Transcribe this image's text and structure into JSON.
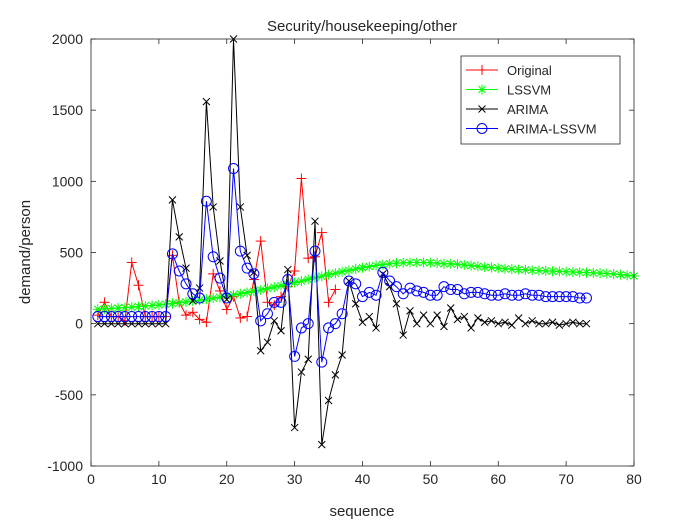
{
  "chart_data": {
    "type": "line",
    "title": "Security/housekeeping/other",
    "xlabel": "sequence",
    "ylabel": "demand/person",
    "xlim": [
      0,
      80
    ],
    "ylim": [
      -1000,
      2000
    ],
    "xticks": [
      "0",
      "10",
      "20",
      "30",
      "40",
      "50",
      "60",
      "70",
      "80"
    ],
    "yticks": [
      "-1000",
      "-500",
      "0",
      "500",
      "1000",
      "1500",
      "2000"
    ],
    "grid": false,
    "legend_position": "top-right",
    "series": [
      {
        "name": "Original",
        "color": "#ff0000",
        "marker": "plus",
        "x": [
          1,
          2,
          3,
          4,
          5,
          6,
          7,
          8,
          9,
          10,
          11,
          12,
          13,
          14,
          15,
          16,
          17,
          18,
          19,
          20,
          21,
          22,
          23,
          24,
          25,
          26,
          27,
          28,
          29,
          30,
          31,
          32,
          33,
          34,
          35,
          36
        ],
        "values": [
          60,
          150,
          50,
          50,
          20,
          430,
          270,
          50,
          50,
          50,
          50,
          480,
          150,
          60,
          80,
          30,
          10,
          350,
          230,
          100,
          190,
          40,
          50,
          310,
          580,
          150,
          130,
          190,
          260,
          370,
          1020,
          460,
          470,
          640,
          150,
          240
        ]
      },
      {
        "name": "LSSVM",
        "color": "#00ff00",
        "marker": "star",
        "x": [
          1,
          2,
          3,
          4,
          5,
          6,
          7,
          8,
          9,
          10,
          11,
          12,
          13,
          14,
          15,
          16,
          17,
          18,
          19,
          20,
          21,
          22,
          23,
          24,
          25,
          26,
          27,
          28,
          29,
          30,
          31,
          32,
          33,
          34,
          35,
          36,
          37,
          38,
          39,
          40,
          41,
          42,
          43,
          44,
          45,
          46,
          47,
          48,
          49,
          50,
          51,
          52,
          53,
          54,
          55,
          56,
          57,
          58,
          59,
          60,
          61,
          62,
          63,
          64,
          65,
          66,
          67,
          68,
          69,
          70,
          71,
          72,
          73,
          74,
          75,
          76,
          77,
          78,
          79,
          80
        ],
        "values": [
          101,
          104,
          107,
          110,
          113,
          116,
          120,
          124,
          128,
          132,
          137,
          142,
          147,
          153,
          159,
          165,
          172,
          179,
          186,
          194,
          202,
          210,
          219,
          228,
          237,
          247,
          257,
          267,
          278,
          289,
          299,
          311,
          322,
          333,
          344,
          354,
          365,
          375,
          384,
          393,
          401,
          409,
          415,
          421,
          425,
          428,
          430,
          430,
          430,
          428,
          425,
          420,
          421,
          417,
          413,
          408,
          403,
          398,
          394,
          390,
          386,
          383,
          380,
          378,
          375,
          373,
          371,
          369,
          367,
          365,
          363,
          361,
          359,
          357,
          355,
          352,
          349,
          345,
          340,
          335
        ]
      },
      {
        "name": "ARIMA",
        "color": "#000000",
        "marker": "cross",
        "x": [
          1,
          2,
          3,
          4,
          5,
          6,
          7,
          8,
          9,
          10,
          11,
          12,
          13,
          14,
          15,
          16,
          17,
          18,
          19,
          20,
          21,
          22,
          23,
          24,
          25,
          26,
          27,
          28,
          29,
          30,
          31,
          32,
          33,
          34,
          35,
          36,
          37,
          38,
          39,
          40,
          41,
          42,
          43,
          44,
          45,
          46,
          47,
          48,
          49,
          50,
          51,
          52,
          53,
          54,
          55,
          56,
          57,
          58,
          59,
          60,
          61,
          62,
          63,
          64,
          65,
          66,
          67,
          68,
          69,
          70,
          71,
          72,
          73
        ],
        "values": [
          0,
          0,
          0,
          0,
          0,
          0,
          0,
          0,
          0,
          0,
          0,
          870,
          610,
          390,
          160,
          250,
          1560,
          820,
          440,
          170,
          2000,
          820,
          480,
          360,
          -190,
          -130,
          20,
          -50,
          380,
          -730,
          -340,
          -250,
          720,
          -850,
          -540,
          -360,
          -220,
          300,
          140,
          10,
          50,
          -30,
          350,
          260,
          140,
          -80,
          90,
          0,
          60,
          0,
          60,
          -20,
          110,
          30,
          50,
          -30,
          40,
          10,
          20,
          0,
          10,
          -10,
          40,
          0,
          20,
          0,
          0,
          10,
          -10,
          0,
          10,
          0,
          0
        ]
      },
      {
        "name": "ARIMA-LSSVM",
        "color": "#0000ff",
        "marker": "circle",
        "x": [
          1,
          2,
          3,
          4,
          5,
          6,
          7,
          8,
          9,
          10,
          11,
          12,
          13,
          14,
          15,
          16,
          17,
          18,
          19,
          20,
          21,
          22,
          23,
          24,
          25,
          26,
          27,
          28,
          29,
          30,
          31,
          32,
          33,
          34,
          35,
          36,
          37,
          38,
          39,
          40,
          41,
          42,
          43,
          44,
          45,
          46,
          47,
          48,
          49,
          50,
          51,
          52,
          53,
          54,
          55,
          56,
          57,
          58,
          59,
          60,
          61,
          62,
          63,
          64,
          65,
          66,
          67,
          68,
          69,
          70,
          71,
          72,
          73
        ],
        "values": [
          50,
          50,
          50,
          50,
          50,
          50,
          50,
          50,
          50,
          50,
          50,
          490,
          370,
          280,
          210,
          180,
          860,
          470,
          320,
          180,
          1090,
          510,
          390,
          350,
          20,
          70,
          150,
          150,
          310,
          -230,
          -30,
          0,
          510,
          -270,
          -30,
          0,
          70,
          300,
          280,
          190,
          220,
          200,
          360,
          300,
          260,
          210,
          250,
          230,
          220,
          200,
          200,
          260,
          240,
          240,
          210,
          220,
          220,
          210,
          200,
          200,
          210,
          200,
          200,
          210,
          200,
          200,
          190,
          190,
          190,
          190,
          190,
          180,
          180
        ]
      }
    ]
  }
}
